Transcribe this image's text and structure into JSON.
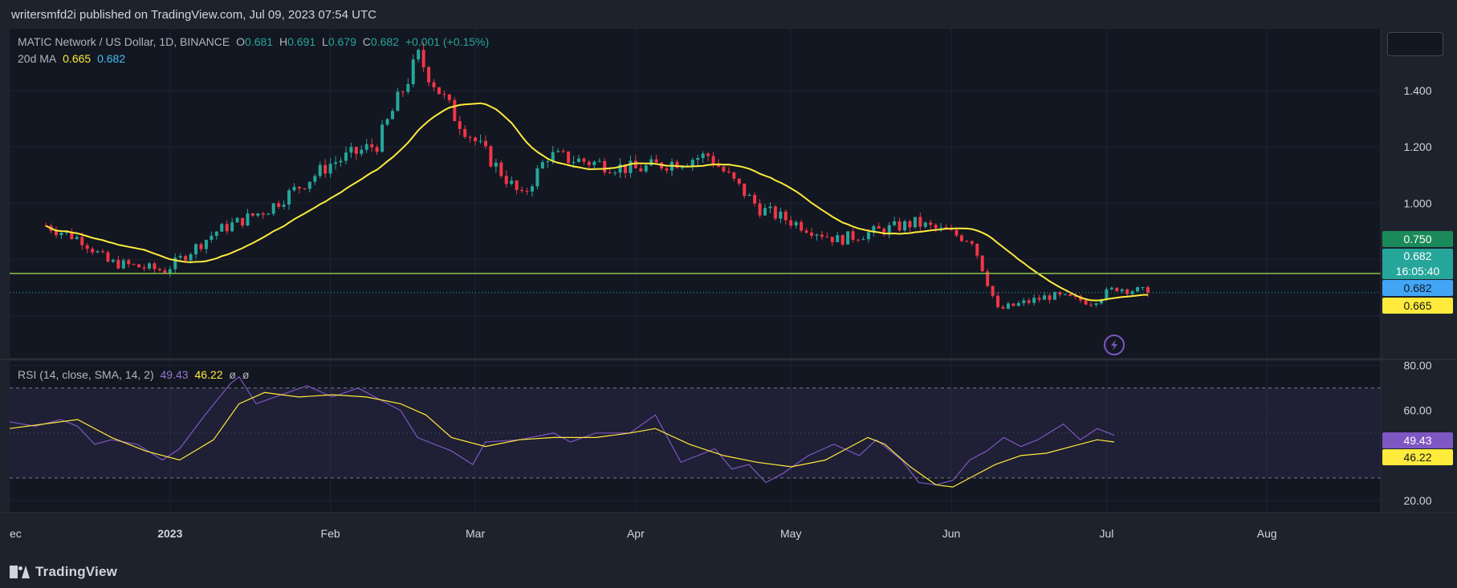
{
  "header": {
    "published_line": "writersmfd2i published on TradingView.com, Jul 09, 2023 07:54 UTC"
  },
  "main_legend": {
    "symbol": "MATIC Network / US Dollar, 1D, BINANCE",
    "o_label": "O",
    "o_value": "0.681",
    "h_label": "H",
    "h_value": "0.691",
    "l_label": "L",
    "l_value": "0.679",
    "c_label": "C",
    "c_value": "0.682",
    "change": "+0.001 (+0.15%)",
    "ma_label": "20d MA",
    "ma_value1": "0.665",
    "ma_value2": "0.682"
  },
  "rsi_legend": {
    "label": "RSI (14, close, SMA, 14, 2)",
    "rsi_value": "49.43",
    "sma_value": "46.22",
    "extra1": "ø",
    "extra2": "ø"
  },
  "price_tags": {
    "horizontal_level": "0.750",
    "last_price": "0.682",
    "countdown": "16:05:40",
    "close_tag": "0.682",
    "ma_tag": "0.665",
    "rsi_tag": "49.43",
    "rsi_ma_tag": "46.22"
  },
  "colors": {
    "background": "#1e222d",
    "pane": "#131722",
    "up": "#26a69a",
    "down": "#f23645",
    "ma": "#ffeb3b",
    "rsi": "#7e57c2",
    "level": "#8bc34a"
  },
  "footer": {
    "brand": "TradingView"
  },
  "chart_data": [
    {
      "type": "candlestick",
      "title": "MATIC Network / US Dollar, 1D, BINANCE",
      "x_tick_labels": [
        "ec",
        "2023",
        "Feb",
        "Mar",
        "Apr",
        "May",
        "Jun",
        "Jul",
        "Aug"
      ],
      "y_tick_labels": [
        "1.400",
        "1.200",
        "1.000"
      ],
      "ylim": [
        0.45,
        1.62
      ],
      "horizontal_line": 0.75,
      "key_points": [
        {
          "date": "2022-12-08",
          "close": 0.92
        },
        {
          "date": "2022-12-15",
          "close": 0.87
        },
        {
          "date": "2022-12-20",
          "close": 0.79
        },
        {
          "date": "2022-12-31",
          "close": 0.76
        },
        {
          "date": "2023-01-10",
          "close": 0.9
        },
        {
          "date": "2023-01-20",
          "close": 0.98
        },
        {
          "date": "2023-02-01",
          "close": 1.14
        },
        {
          "date": "2023-02-10",
          "close": 1.21
        },
        {
          "date": "2023-02-18",
          "close": 1.52
        },
        {
          "date": "2023-02-25",
          "close": 1.31
        },
        {
          "date": "2023-03-10",
          "close": 1.02
        },
        {
          "date": "2023-03-15",
          "close": 1.17
        },
        {
          "date": "2023-04-01",
          "close": 1.12
        },
        {
          "date": "2023-04-15",
          "close": 1.17
        },
        {
          "date": "2023-04-25",
          "close": 0.98
        },
        {
          "date": "2023-05-10",
          "close": 0.87
        },
        {
          "date": "2023-05-25",
          "close": 0.93
        },
        {
          "date": "2023-06-05",
          "close": 0.87
        },
        {
          "date": "2023-06-10",
          "close": 0.62
        },
        {
          "date": "2023-06-20",
          "close": 0.67
        },
        {
          "date": "2023-06-28",
          "close": 0.65
        },
        {
          "date": "2023-07-03",
          "close": 0.7
        },
        {
          "date": "2023-07-09",
          "close": 0.682
        }
      ],
      "series": [
        {
          "name": "20d MA",
          "last_value": 0.665
        }
      ]
    },
    {
      "type": "line",
      "title": "RSI (14, close, SMA, 14, 2)",
      "y_tick_labels": [
        "80.00",
        "60.00",
        "20.00"
      ],
      "ylim": [
        15,
        82
      ],
      "bands": [
        70,
        30
      ],
      "series": [
        {
          "name": "RSI",
          "last_value": 49.43,
          "points": [
            [
              0,
              55
            ],
            [
              30,
              53
            ],
            [
              60,
              56
            ],
            [
              80,
              53
            ],
            [
              100,
              45
            ],
            [
              120,
              47
            ],
            [
              150,
              45
            ],
            [
              180,
              38
            ],
            [
              200,
              43
            ],
            [
              230,
              58
            ],
            [
              260,
              72
            ],
            [
              270,
              75
            ],
            [
              290,
              63
            ],
            [
              320,
              67
            ],
            [
              350,
              71
            ],
            [
              380,
              66
            ],
            [
              410,
              70
            ],
            [
              430,
              66
            ],
            [
              460,
              60
            ],
            [
              480,
              48
            ],
            [
              520,
              42
            ],
            [
              545,
              36
            ],
            [
              560,
              46
            ],
            [
              600,
              47
            ],
            [
              640,
              50
            ],
            [
              660,
              46
            ],
            [
              690,
              50
            ],
            [
              730,
              50
            ],
            [
              760,
              58
            ],
            [
              790,
              37
            ],
            [
              830,
              43
            ],
            [
              850,
              34
            ],
            [
              870,
              36
            ],
            [
              890,
              28
            ],
            [
              910,
              32
            ],
            [
              940,
              40
            ],
            [
              970,
              45
            ],
            [
              1000,
              40
            ],
            [
              1020,
              47
            ],
            [
              1050,
              38
            ],
            [
              1070,
              28
            ],
            [
              1090,
              27
            ],
            [
              1110,
              29
            ],
            [
              1130,
              38
            ],
            [
              1150,
              42
            ],
            [
              1170,
              48
            ],
            [
              1190,
              44
            ],
            [
              1210,
              47
            ],
            [
              1240,
              54
            ],
            [
              1260,
              47
            ],
            [
              1280,
              52
            ],
            [
              1300,
              49
            ]
          ]
        },
        {
          "name": "RSI-based MA",
          "last_value": 46.22,
          "points": [
            [
              0,
              52
            ],
            [
              40,
              54
            ],
            [
              80,
              56
            ],
            [
              120,
              48
            ],
            [
              160,
              42
            ],
            [
              200,
              38
            ],
            [
              240,
              47
            ],
            [
              270,
              63
            ],
            [
              300,
              68
            ],
            [
              340,
              66
            ],
            [
              380,
              67
            ],
            [
              420,
              66
            ],
            [
              460,
              63
            ],
            [
              490,
              58
            ],
            [
              520,
              48
            ],
            [
              560,
              44
            ],
            [
              600,
              47
            ],
            [
              640,
              48
            ],
            [
              690,
              48
            ],
            [
              730,
              50
            ],
            [
              760,
              52
            ],
            [
              800,
              45
            ],
            [
              840,
              40
            ],
            [
              880,
              37
            ],
            [
              920,
              35
            ],
            [
              960,
              38
            ],
            [
              990,
              44
            ],
            [
              1010,
              48
            ],
            [
              1030,
              45
            ],
            [
              1060,
              35
            ],
            [
              1090,
              27
            ],
            [
              1110,
              26
            ],
            [
              1130,
              30
            ],
            [
              1160,
              36
            ],
            [
              1190,
              40
            ],
            [
              1220,
              41
            ],
            [
              1250,
              44
            ],
            [
              1280,
              47
            ],
            [
              1300,
              46
            ]
          ]
        }
      ]
    }
  ]
}
